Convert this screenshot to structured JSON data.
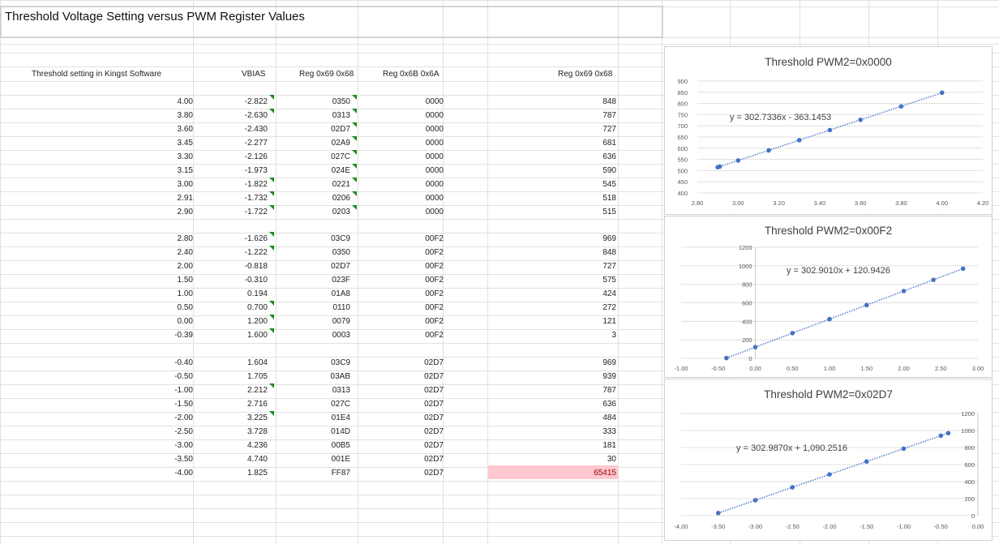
{
  "sheet": {
    "title": "Threshold Voltage Setting versus PWM Register Values",
    "headers": {
      "threshold": "Threshold setting in Kingst Software",
      "vbias": "VBIAS",
      "reg6968": "Reg 0x69 0x68",
      "reg6b6a": "Reg 0x6B 0x6A",
      "reg6968_dec": "Reg 0x69 0x68"
    },
    "groups": [
      [
        [
          "4.00",
          "-2.822",
          "0350",
          "0000",
          "848"
        ],
        [
          "3.80",
          "-2.630",
          "0313",
          "0000",
          "787"
        ],
        [
          "3.60",
          "-2.430",
          "02D7",
          "0000",
          "727"
        ],
        [
          "3.45",
          "-2.277",
          "02A9",
          "0000",
          "681"
        ],
        [
          "3.30",
          "-2.126",
          "027C",
          "0000",
          "636"
        ],
        [
          "3.15",
          "-1.973",
          "024E",
          "0000",
          "590"
        ],
        [
          "3.00",
          "-1.822",
          "0221",
          "0000",
          "545"
        ],
        [
          "2.91",
          "-1.732",
          "0206",
          "0000",
          "518"
        ],
        [
          "2.90",
          "-1.722",
          "0203",
          "0000",
          "515"
        ]
      ],
      [
        [
          "2.80",
          "-1.626",
          "03C9",
          "00F2",
          "969"
        ],
        [
          "2.40",
          "-1.222",
          "0350",
          "00F2",
          "848"
        ],
        [
          "2.00",
          "-0.818",
          "02D7",
          "00F2",
          "727"
        ],
        [
          "1.50",
          "-0.310",
          "023F",
          "00F2",
          "575"
        ],
        [
          "1.00",
          "0.194",
          "01A8",
          "00F2",
          "424"
        ],
        [
          "0.50",
          "0.700",
          "0110",
          "00F2",
          "272"
        ],
        [
          "0.00",
          "1.200",
          "0079",
          "00F2",
          "121"
        ],
        [
          "-0.39",
          "1.600",
          "0003",
          "00F2",
          "3"
        ]
      ],
      [
        [
          "-0.40",
          "1.604",
          "03C9",
          "02D7",
          "969"
        ],
        [
          "-0.50",
          "1.705",
          "03AB",
          "02D7",
          "939"
        ],
        [
          "-1.00",
          "2.212",
          "0313",
          "02D7",
          "787"
        ],
        [
          "-1.50",
          "2.716",
          "027C",
          "02D7",
          "636"
        ],
        [
          "-2.00",
          "3.225",
          "01E4",
          "02D7",
          "484"
        ],
        [
          "-2.50",
          "3.728",
          "014D",
          "02D7",
          "333"
        ],
        [
          "-3.00",
          "4.236",
          "00B5",
          "02D7",
          "181"
        ],
        [
          "-3.50",
          "4.740",
          "001E",
          "02D7",
          "30"
        ],
        [
          "-4.00",
          "1.825",
          "FF87",
          "02D7",
          "65415"
        ]
      ]
    ]
  },
  "chart_data": [
    {
      "type": "scatter",
      "title": "Threshold PWM2=0x0000",
      "trendline": "y = 302.7336x - 363.1453",
      "x": [
        4.0,
        3.8,
        3.6,
        3.45,
        3.3,
        3.15,
        3.0,
        2.91,
        2.9
      ],
      "y": [
        848,
        787,
        727,
        681,
        636,
        590,
        545,
        518,
        515
      ],
      "xlim": [
        2.8,
        4.2
      ],
      "ylim": [
        400,
        900
      ],
      "xticks": [
        "2.80",
        "3.00",
        "3.20",
        "3.40",
        "3.60",
        "3.80",
        "4.00",
        "4.20"
      ],
      "yticks": [
        "400",
        "450",
        "500",
        "550",
        "600",
        "650",
        "700",
        "750",
        "800",
        "850",
        "900"
      ],
      "color": "#4472c4"
    },
    {
      "type": "scatter",
      "title": "Threshold PWM2=0x00F2",
      "trendline": "y = 302.9010x + 120.9426",
      "x": [
        2.8,
        2.4,
        2.0,
        1.5,
        1.0,
        0.5,
        0.0,
        -0.39
      ],
      "y": [
        969,
        848,
        727,
        575,
        424,
        272,
        121,
        3
      ],
      "xlim": [
        -1.0,
        3.0
      ],
      "ylim": [
        0,
        1200
      ],
      "xticks": [
        "-1.00",
        "-0.50",
        "0.00",
        "0.50",
        "1.00",
        "1.50",
        "2.00",
        "2.50",
        "3.00"
      ],
      "yticks": [
        "0",
        "200",
        "400",
        "600",
        "800",
        "1000",
        "1200"
      ],
      "color": "#4472c4"
    },
    {
      "type": "scatter",
      "title": "Threshold PWM2=0x02D7",
      "trendline": "y = 302.9870x + 1,090.2516",
      "x": [
        -0.4,
        -0.5,
        -1.0,
        -1.5,
        -2.0,
        -2.5,
        -3.0,
        -3.5
      ],
      "y": [
        969,
        939,
        787,
        636,
        484,
        333,
        181,
        30
      ],
      "xlim": [
        -4.0,
        0.0
      ],
      "ylim": [
        0,
        1200
      ],
      "xticks": [
        "-4.00",
        "-3.50",
        "-3.00",
        "-2.50",
        "-2.00",
        "-1.50",
        "-1.00",
        "-0.50",
        "0.00"
      ],
      "yticks": [
        "0",
        "200",
        "400",
        "600",
        "800",
        "1000",
        "1200"
      ],
      "color": "#4472c4"
    }
  ]
}
